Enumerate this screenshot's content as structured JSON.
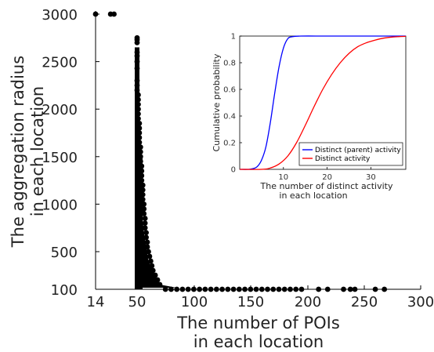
{
  "chart_data": [
    {
      "type": "scatter",
      "title": "",
      "xlabel": [
        "The number of POIs",
        "in each location"
      ],
      "ylabel": [
        "The aggregation radius",
        "in each location"
      ],
      "xticks": [
        "14",
        "50",
        "100",
        "150",
        "200",
        "250",
        "300"
      ],
      "yticks": [
        "100",
        "500",
        "1000",
        "1500",
        "2000",
        "2500",
        "3000"
      ],
      "xlim": [
        14,
        300
      ],
      "ylim": [
        100,
        3000
      ],
      "marker_color": "#000000",
      "outlier_points": [
        {
          "x": 14,
          "y": 3000
        },
        {
          "x": 27,
          "y": 3000
        },
        {
          "x": 30,
          "y": 3000
        }
      ],
      "bulk_points_shape": "dense column at x=50 rising from 100 to about 2750, steep decay to x=60, tail along y=100 out to about x=270",
      "tail_points": [
        {
          "x": 50,
          "y": 2750
        },
        {
          "x": 50,
          "y": 2730
        },
        {
          "x": 50,
          "y": 2700
        },
        {
          "x": 50,
          "y": 2600
        },
        {
          "x": 50,
          "y": 2560
        },
        {
          "x": 50,
          "y": 2500
        },
        {
          "x": 50,
          "y": 2430
        },
        {
          "x": 50,
          "y": 2300
        },
        {
          "x": 50,
          "y": 2250
        },
        {
          "x": 50,
          "y": 2200
        },
        {
          "x": 51,
          "y": 2150
        },
        {
          "x": 51,
          "y": 2100
        },
        {
          "x": 51,
          "y": 2050
        },
        {
          "x": 51,
          "y": 2000
        },
        {
          "x": 51,
          "y": 1950
        },
        {
          "x": 51,
          "y": 1900
        },
        {
          "x": 52,
          "y": 1850
        },
        {
          "x": 52,
          "y": 1800
        },
        {
          "x": 52,
          "y": 1750
        },
        {
          "x": 52,
          "y": 1700
        },
        {
          "x": 52,
          "y": 1650
        },
        {
          "x": 53,
          "y": 1600
        },
        {
          "x": 53,
          "y": 1550
        },
        {
          "x": 53,
          "y": 1500
        },
        {
          "x": 53,
          "y": 1450
        },
        {
          "x": 54,
          "y": 1400
        },
        {
          "x": 54,
          "y": 1350
        },
        {
          "x": 54,
          "y": 1300
        },
        {
          "x": 54,
          "y": 1250
        },
        {
          "x": 55,
          "y": 1200
        },
        {
          "x": 55,
          "y": 1150
        },
        {
          "x": 55,
          "y": 1100
        },
        {
          "x": 55,
          "y": 1050
        },
        {
          "x": 56,
          "y": 1000
        },
        {
          "x": 56,
          "y": 950
        },
        {
          "x": 56,
          "y": 900
        },
        {
          "x": 57,
          "y": 850
        },
        {
          "x": 57,
          "y": 800
        },
        {
          "x": 57,
          "y": 750
        },
        {
          "x": 58,
          "y": 700
        },
        {
          "x": 58,
          "y": 650
        },
        {
          "x": 59,
          "y": 600
        },
        {
          "x": 59,
          "y": 550
        },
        {
          "x": 60,
          "y": 500
        },
        {
          "x": 61,
          "y": 450
        },
        {
          "x": 62,
          "y": 400
        },
        {
          "x": 63,
          "y": 350
        },
        {
          "x": 64,
          "y": 300
        },
        {
          "x": 66,
          "y": 250
        },
        {
          "x": 68,
          "y": 200
        },
        {
          "x": 70,
          "y": 150
        },
        {
          "x": 75,
          "y": 100
        },
        {
          "x": 80,
          "y": 100
        },
        {
          "x": 85,
          "y": 100
        },
        {
          "x": 90,
          "y": 100
        },
        {
          "x": 95,
          "y": 100
        },
        {
          "x": 100,
          "y": 100
        },
        {
          "x": 105,
          "y": 100
        },
        {
          "x": 110,
          "y": 100
        },
        {
          "x": 115,
          "y": 100
        },
        {
          "x": 120,
          "y": 100
        },
        {
          "x": 125,
          "y": 100
        },
        {
          "x": 130,
          "y": 100
        },
        {
          "x": 135,
          "y": 100
        },
        {
          "x": 140,
          "y": 100
        },
        {
          "x": 145,
          "y": 100
        },
        {
          "x": 150,
          "y": 100
        },
        {
          "x": 155,
          "y": 100
        },
        {
          "x": 160,
          "y": 100
        },
        {
          "x": 165,
          "y": 100
        },
        {
          "x": 170,
          "y": 100
        },
        {
          "x": 175,
          "y": 100
        },
        {
          "x": 180,
          "y": 100
        },
        {
          "x": 185,
          "y": 100
        },
        {
          "x": 190,
          "y": 100
        },
        {
          "x": 195,
          "y": 100
        },
        {
          "x": 210,
          "y": 100
        },
        {
          "x": 218,
          "y": 100
        },
        {
          "x": 232,
          "y": 100
        },
        {
          "x": 238,
          "y": 100
        },
        {
          "x": 242,
          "y": 100
        },
        {
          "x": 260,
          "y": 100
        },
        {
          "x": 268,
          "y": 100
        }
      ]
    },
    {
      "type": "line",
      "title": "",
      "xlabel": [
        "The number of distinct activity",
        "in each location"
      ],
      "ylabel": "Cumulative probability",
      "xlim": [
        0,
        38
      ],
      "ylim": [
        0,
        1
      ],
      "xticks": [
        "10",
        "20",
        "30"
      ],
      "yticks": [
        "0",
        "0.2",
        "0.4",
        "0.6",
        "0.8",
        "1"
      ],
      "legend": "bottom-right",
      "series": [
        {
          "name": "Distinct (parent) activity",
          "color": "#0000ff",
          "x": [
            0,
            2,
            3,
            4,
            5,
            6,
            7,
            8,
            9,
            10,
            11,
            12,
            14,
            20,
            30,
            38
          ],
          "y": [
            0,
            0.0,
            0.005,
            0.02,
            0.07,
            0.17,
            0.35,
            0.57,
            0.77,
            0.91,
            0.98,
            0.995,
            1.0,
            1.0,
            1.0,
            1.0
          ]
        },
        {
          "name": "Distinct activity",
          "color": "#ff0000",
          "x": [
            0,
            5,
            7,
            9,
            11,
            13,
            15,
            17,
            19,
            21,
            23,
            25,
            27,
            29,
            31,
            33,
            35,
            38
          ],
          "y": [
            0,
            0.0,
            0.01,
            0.04,
            0.1,
            0.2,
            0.33,
            0.47,
            0.6,
            0.71,
            0.8,
            0.87,
            0.92,
            0.95,
            0.97,
            0.985,
            0.993,
            0.998
          ]
        }
      ]
    }
  ]
}
